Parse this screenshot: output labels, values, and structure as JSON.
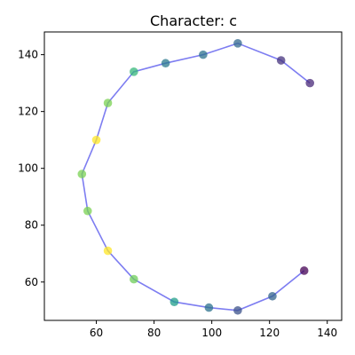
{
  "chart_data": {
    "type": "scatter",
    "title": "Character: c",
    "xlabel": "",
    "ylabel": "",
    "xlim": [
      42,
      145
    ],
    "ylim": [
      46.5,
      148
    ],
    "xticks": [
      60,
      80,
      100,
      120,
      140
    ],
    "yticks": [
      60,
      80,
      100,
      120,
      140
    ],
    "grid": false,
    "line_color": "#6666ee",
    "series": [
      {
        "x": [
          134,
          124,
          109,
          97,
          84,
          73,
          64,
          60,
          55,
          57,
          64,
          73,
          87,
          99,
          109,
          121,
          132
        ],
        "y": [
          130,
          138,
          144,
          140,
          137,
          134,
          123,
          110,
          98,
          85,
          71,
          61,
          53,
          51,
          50,
          55,
          64
        ],
        "colors": [
          "#482878",
          "#46337e",
          "#31688e",
          "#2c728e",
          "#2a788e",
          "#35b779",
          "#7ad151",
          "#fde725",
          "#7ad151",
          "#7ad151",
          "#fde725",
          "#6ece58",
          "#1f9e89",
          "#2c728e",
          "#3b528b",
          "#33638d",
          "#440154"
        ]
      }
    ]
  }
}
